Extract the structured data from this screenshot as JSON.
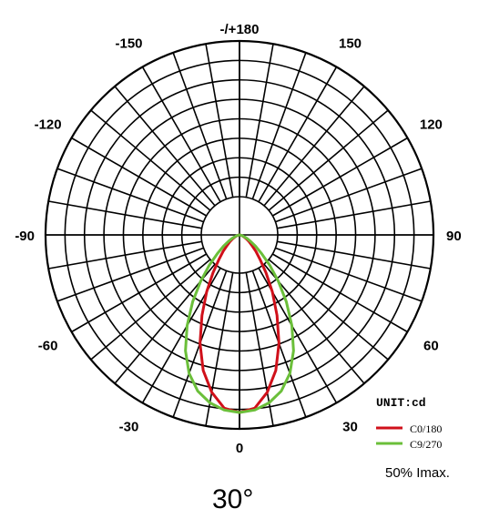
{
  "chart_data": {
    "type": "polar",
    "subtitle": "50% Imax.",
    "unit_label": "UNIT:cd",
    "beam_angle_label": "30°",
    "angle_labels": [
      {
        "angle": 180,
        "text": "-/+180"
      },
      {
        "angle": -150,
        "text": "-150"
      },
      {
        "angle": 150,
        "text": "150"
      },
      {
        "angle": -120,
        "text": "-120"
      },
      {
        "angle": 120,
        "text": "120"
      },
      {
        "angle": -90,
        "text": "-90"
      },
      {
        "angle": 90,
        "text": "90"
      },
      {
        "angle": -60,
        "text": "-60"
      },
      {
        "angle": 60,
        "text": "60"
      },
      {
        "angle": -30,
        "text": "-30"
      },
      {
        "angle": 30,
        "text": "30"
      },
      {
        "angle": 0,
        "text": "0"
      }
    ],
    "radial_rings": 8,
    "spoke_step_deg": 10,
    "legend_placement": "bottom-right",
    "series": [
      {
        "name": "C0/180",
        "color": "#d0101a",
        "theta": [
          0,
          5,
          10,
          15,
          20,
          25,
          30,
          35,
          40,
          45,
          50,
          55,
          60,
          65,
          70,
          75,
          80,
          85,
          90
        ],
        "r": [
          1.0,
          0.98,
          0.9,
          0.79,
          0.65,
          0.5,
          0.37,
          0.26,
          0.18,
          0.13,
          0.09,
          0.065,
          0.045,
          0.03,
          0.02,
          0.01,
          0.005,
          0.002,
          0
        ]
      },
      {
        "name": "C9/270",
        "color": "#6bbf3a",
        "theta": [
          0,
          5,
          10,
          15,
          20,
          25,
          30,
          35,
          40,
          45,
          50,
          55,
          60,
          65,
          70,
          75,
          80,
          85,
          90
        ],
        "r": [
          1.0,
          0.99,
          0.96,
          0.91,
          0.83,
          0.72,
          0.59,
          0.46,
          0.34,
          0.24,
          0.16,
          0.11,
          0.07,
          0.045,
          0.025,
          0.012,
          0.005,
          0.002,
          0
        ]
      }
    ]
  }
}
